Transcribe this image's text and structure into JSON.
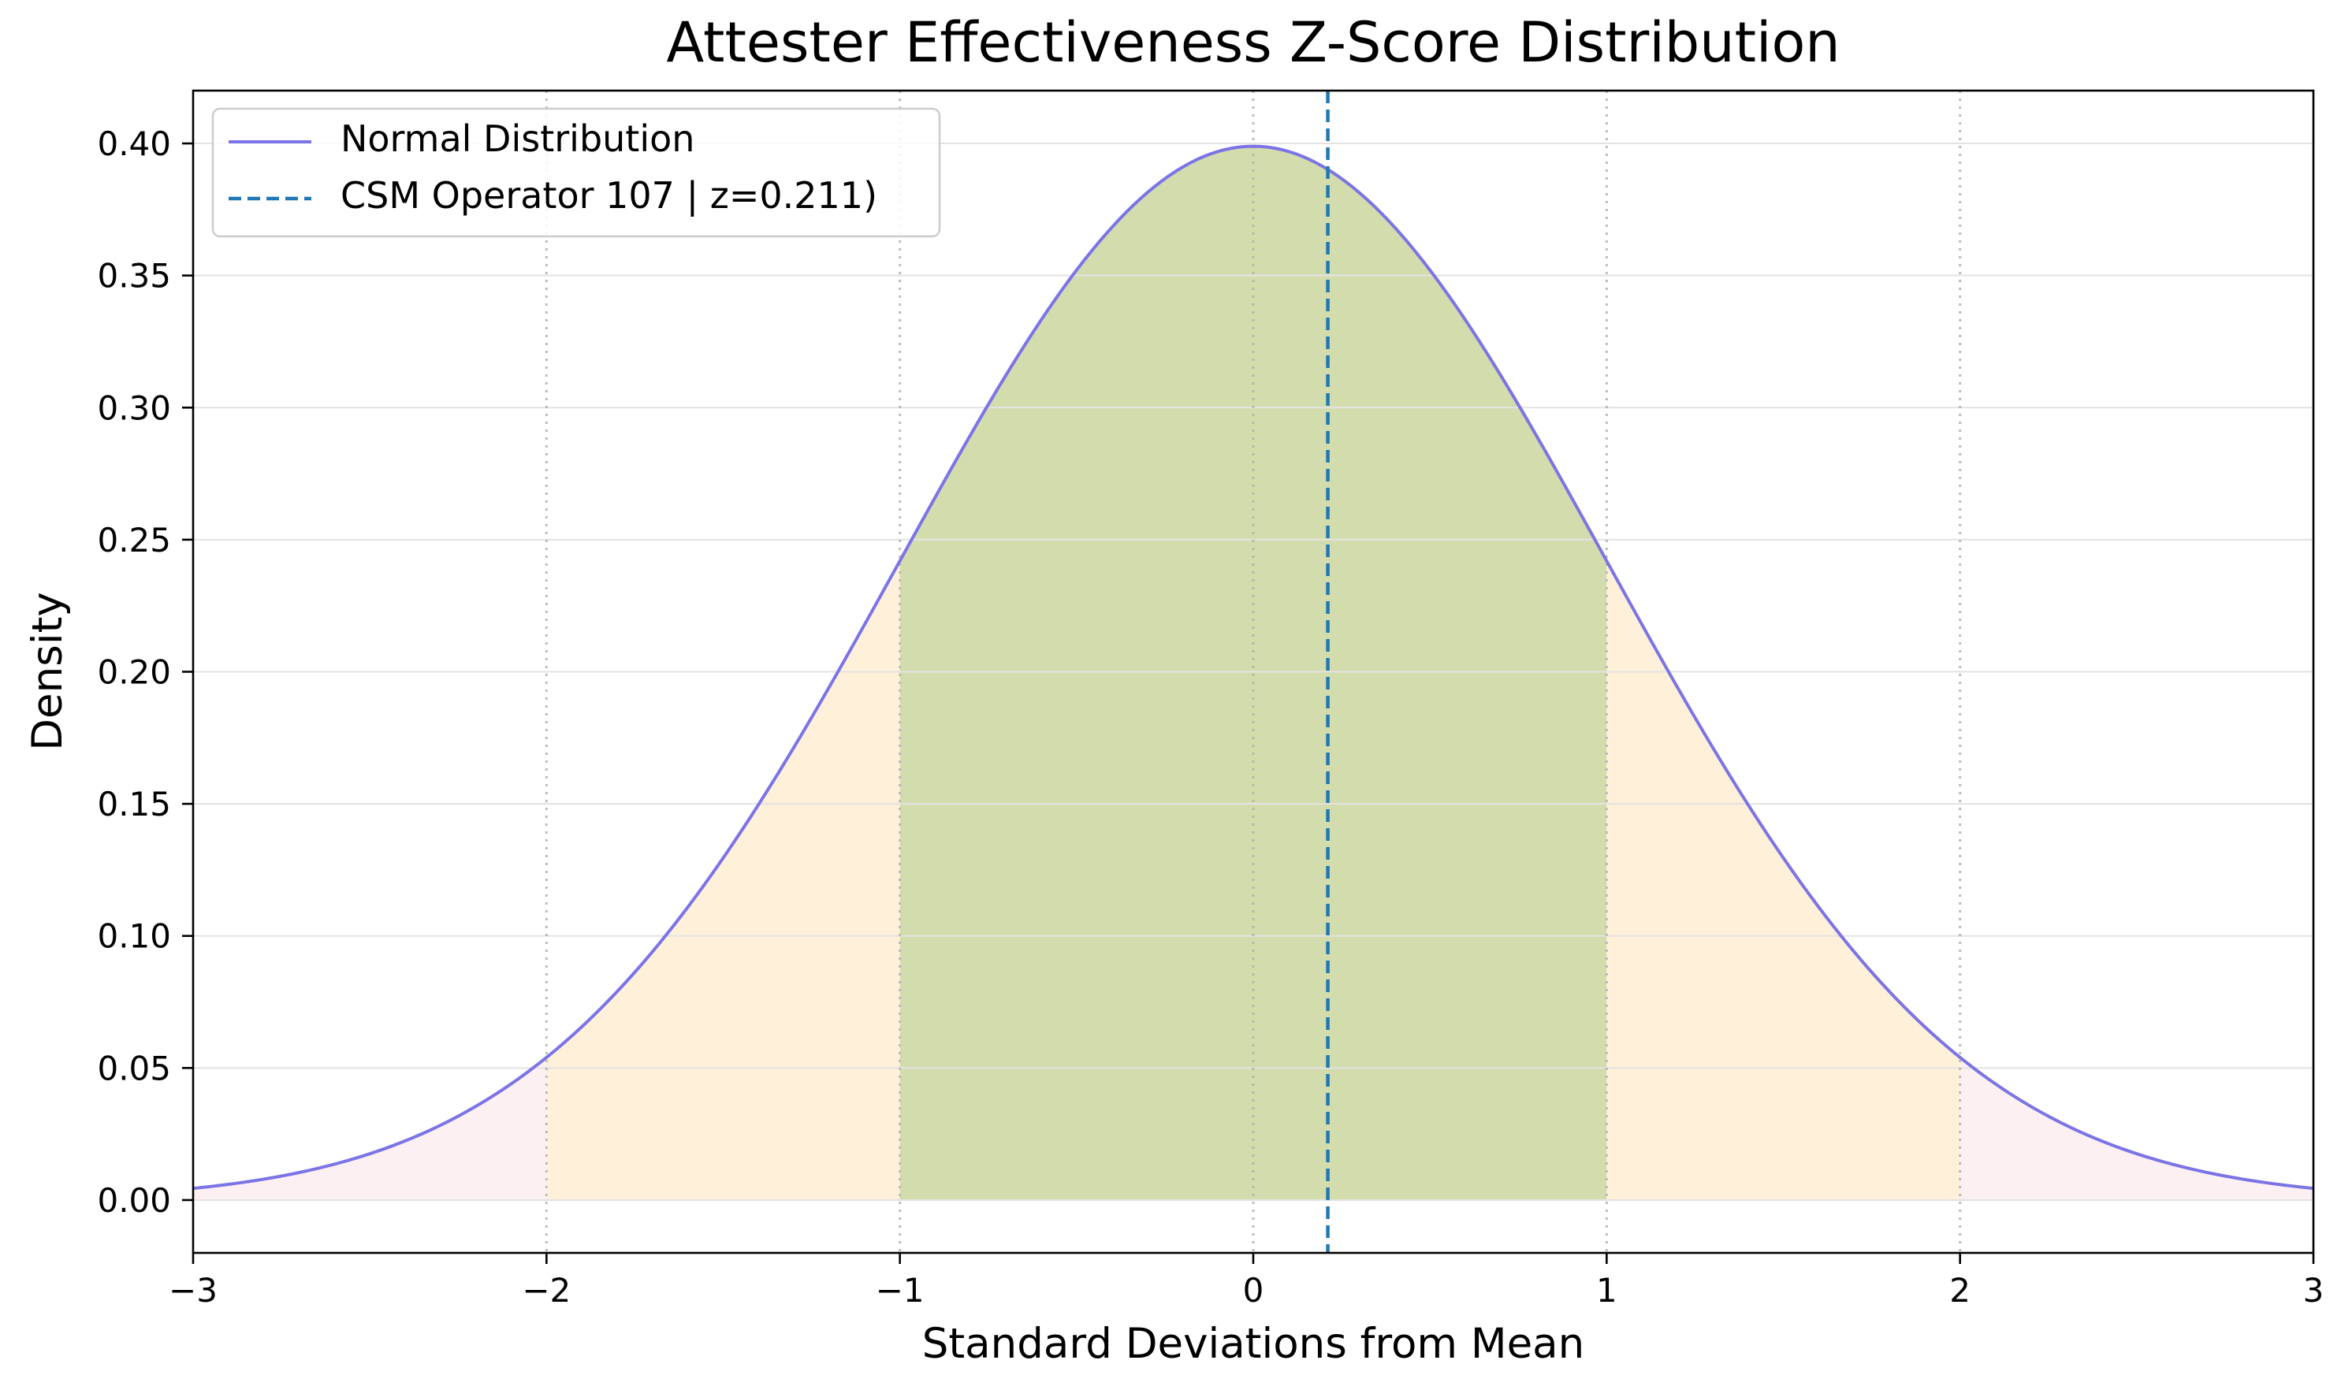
{
  "chart_data": {
    "type": "area",
    "title": "Attester Effectiveness Z-Score Distribution",
    "xlabel": "Standard Deviations from Mean",
    "ylabel": "Density",
    "xlim": [
      -3,
      3
    ],
    "ylim": [
      -0.02,
      0.42
    ],
    "xticks": [
      -3,
      -2,
      -1,
      0,
      1,
      2,
      3
    ],
    "xtick_labels": [
      "−3",
      "−2",
      "−1",
      "0",
      "1",
      "2",
      "3"
    ],
    "yticks": [
      0.0,
      0.05,
      0.1,
      0.15,
      0.2,
      0.25,
      0.3,
      0.35,
      0.4
    ],
    "ytick_labels": [
      "0.00",
      "0.05",
      "0.10",
      "0.15",
      "0.20",
      "0.25",
      "0.30",
      "0.35",
      "0.40"
    ],
    "grid": "horizontal",
    "std_marker_lines": [
      -2,
      -1,
      0,
      1,
      2
    ],
    "series": [
      {
        "name": "Normal Distribution",
        "kind": "line",
        "color": "#7b74e6",
        "x": [
          -3.0,
          -2.75,
          -2.5,
          -2.25,
          -2.0,
          -1.75,
          -1.5,
          -1.25,
          -1.0,
          -0.75,
          -0.5,
          -0.25,
          0.0,
          0.25,
          0.5,
          0.75,
          1.0,
          1.25,
          1.5,
          1.75,
          2.0,
          2.25,
          2.5,
          2.75,
          3.0
        ],
        "y": [
          0.0044,
          0.0091,
          0.0175,
          0.0317,
          0.054,
          0.0863,
          0.1295,
          0.1826,
          0.242,
          0.3011,
          0.3521,
          0.3867,
          0.3989,
          0.3867,
          0.3521,
          0.3011,
          0.242,
          0.1826,
          0.1295,
          0.0863,
          0.054,
          0.0317,
          0.0175,
          0.0091,
          0.0044
        ]
      },
      {
        "name": "CSM Operator 107 | z=0.211)",
        "kind": "vline",
        "color": "#1f77b4",
        "x": 0.211
      }
    ],
    "regions": [
      {
        "from": -1,
        "to": 1,
        "color": "#d3dcad"
      },
      {
        "from": -2,
        "to": -1,
        "color": "#fff0d9"
      },
      {
        "from": 1,
        "to": 2,
        "color": "#fff0d9"
      },
      {
        "from": -3,
        "to": -2,
        "color": "#fdf0f2"
      },
      {
        "from": 2,
        "to": 3,
        "color": "#fdf0f2"
      }
    ],
    "legend": {
      "position": "top-left",
      "entries": [
        "Normal Distribution",
        "CSM Operator 107 | z=0.211)"
      ]
    }
  }
}
